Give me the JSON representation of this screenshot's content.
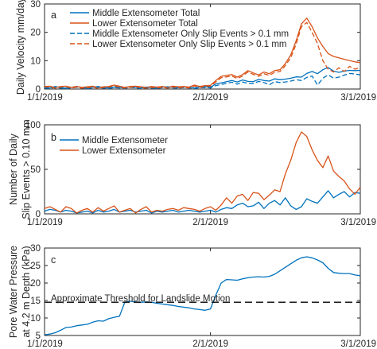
{
  "chart_data": [
    {
      "panel": "a",
      "type": "line",
      "ylabel": "Daily Velocity mm/day",
      "ylim": [
        0,
        30
      ],
      "y_ticks": [
        0,
        10,
        20,
        30
      ],
      "x_ticks": [
        "1/1/2019",
        "2/1/2019",
        "3/1/2019"
      ],
      "xlim_days": [
        0,
        59
      ],
      "grid": false,
      "legend_position": "top-center",
      "series": [
        {
          "name": "Middle Extensometer Total",
          "color": "#0072BD",
          "dash": "solid",
          "values": [
            0.6,
            0.4,
            0.9,
            0.5,
            0.3,
            0.6,
            0.9,
            0.5,
            0.3,
            0.6,
            0.9,
            0.5,
            0.4,
            0.7,
            0.6,
            0.4,
            0.9,
            0.6,
            0.4,
            0.7,
            0.5,
            0.3,
            0.7,
            0.8,
            0.6,
            0.5,
            0.8,
            0.6,
            0.4,
            0.7,
            0.8,
            0.6,
            1.8,
            2.2,
            2.6,
            3.0,
            2.5,
            3.2,
            2.7,
            2.6,
            3.4,
            3.0,
            2.8,
            3.6,
            3.3,
            3.5,
            3.8,
            4.3,
            4.2,
            5.5,
            6.2,
            5.4,
            6.8,
            7.6,
            6.3,
            5.9,
            6.3,
            6.6,
            6.5,
            6.6
          ]
        },
        {
          "name": "Lower Extensometer Total",
          "color": "#D95319",
          "dash": "solid",
          "values": [
            0.9,
            1.0,
            0.5,
            0.9,
            1.0,
            0.6,
            0.9,
            0.6,
            0.8,
            1.0,
            0.4,
            0.8,
            0.9,
            1.4,
            1.0,
            0.6,
            0.9,
            1.0,
            0.8,
            0.6,
            0.9,
            0.7,
            0.9,
            0.6,
            1.0,
            0.8,
            0.9,
            0.7,
            1.4,
            0.9,
            1.2,
            1.3,
            3.0,
            4.5,
            4.8,
            5.1,
            4.2,
            5.1,
            6.5,
            5.7,
            5.0,
            6.0,
            5.4,
            6.5,
            6.8,
            9.0,
            12.0,
            17.0,
            23.0,
            25.0,
            22.0,
            18.0,
            15.0,
            12.5,
            11.5,
            11.0,
            10.5,
            10.0,
            9.6,
            9.3
          ]
        },
        {
          "name": "Middle Extensometer Only Slip Events > 0.1 mm",
          "color": "#0072BD",
          "dash": "dashed",
          "values": [
            0.3,
            0.2,
            0.6,
            0.3,
            0.1,
            0.4,
            0.6,
            0.3,
            0.1,
            0.4,
            0.6,
            0.3,
            0.2,
            0.5,
            0.4,
            0.2,
            0.6,
            0.4,
            0.2,
            0.5,
            0.3,
            0.1,
            0.5,
            0.5,
            0.4,
            0.3,
            0.5,
            0.4,
            0.2,
            0.5,
            0.5,
            0.4,
            1.2,
            1.6,
            2.0,
            2.4,
            1.7,
            2.5,
            2.0,
            1.9,
            2.7,
            2.3,
            1.5,
            2.6,
            2.3,
            2.5,
            2.8,
            3.3,
            3.0,
            4.1,
            4.6,
            1.4,
            3.8,
            5.0,
            3.8,
            4.2,
            4.9,
            5.5,
            5.3,
            5.0
          ]
        },
        {
          "name": "Lower Extensometer Only Slip Events > 0.1 mm",
          "color": "#D95319",
          "dash": "dashed",
          "values": [
            0.7,
            0.8,
            0.3,
            0.7,
            0.9,
            0.3,
            0.7,
            0.3,
            0.5,
            0.7,
            0.2,
            0.6,
            0.7,
            1.1,
            0.7,
            0.3,
            0.6,
            0.8,
            0.5,
            0.3,
            0.6,
            0.4,
            0.6,
            0.3,
            0.7,
            0.5,
            0.6,
            0.4,
            1.1,
            0.6,
            0.9,
            1.0,
            2.5,
            4.0,
            4.3,
            4.6,
            3.7,
            4.6,
            6.0,
            5.2,
            4.5,
            5.4,
            4.8,
            5.9,
            6.2,
            8.3,
            11.0,
            15.8,
            22.0,
            23.5,
            20.0,
            16.0,
            10.0,
            7.0,
            6.0,
            7.5,
            6.2,
            8.0,
            7.0,
            7.6
          ]
        }
      ]
    },
    {
      "panel": "b",
      "type": "line",
      "ylabel": "Number of Daily\nSlip Events > 0.10 mm",
      "ylim": [
        0,
        100
      ],
      "y_ticks": [
        0,
        50,
        100
      ],
      "x_ticks": [
        "1/1/2019",
        "2/1/2019",
        "3/1/2019"
      ],
      "xlim_days": [
        0,
        59
      ],
      "grid": false,
      "legend_position": "top-left",
      "series": [
        {
          "name": "Middle Extensometer",
          "color": "#0072BD",
          "values": [
            3,
            5,
            4,
            2,
            4,
            3,
            1,
            2,
            3,
            1,
            4,
            2,
            3,
            5,
            2,
            3,
            4,
            2,
            3,
            4,
            1,
            3,
            2,
            3,
            4,
            2,
            3,
            4,
            3,
            2,
            3,
            4,
            2,
            5,
            7,
            6,
            10,
            12,
            8,
            9,
            13,
            6,
            12,
            15,
            10,
            18,
            9,
            5,
            8,
            17,
            14,
            12,
            19,
            26,
            18,
            22,
            25,
            19,
            24,
            23
          ]
        },
        {
          "name": "Lower Extensometer",
          "color": "#D95319",
          "values": [
            6,
            8,
            5,
            2,
            8,
            6,
            1,
            4,
            6,
            2,
            7,
            3,
            6,
            9,
            2,
            4,
            6,
            1,
            5,
            8,
            2,
            4,
            3,
            5,
            6,
            4,
            7,
            6,
            5,
            3,
            6,
            8,
            4,
            10,
            18,
            12,
            20,
            22,
            15,
            24,
            23,
            16,
            21,
            27,
            25,
            45,
            60,
            80,
            92,
            87,
            72,
            60,
            52,
            65,
            48,
            42,
            37,
            28,
            22,
            30
          ]
        }
      ]
    },
    {
      "panel": "c",
      "type": "line",
      "ylabel": "Pore Water Pressure\nat 4.2 m Depth (kPa)",
      "ylim": [
        5,
        30
      ],
      "y_ticks": [
        5,
        10,
        15,
        20,
        25,
        30
      ],
      "x_ticks": [
        "1/1/2019",
        "2/1/2019",
        "3/1/2019"
      ],
      "xlim_days": [
        0,
        59
      ],
      "grid": false,
      "annotation": "Approximate Threshold for Landslide Motion",
      "threshold": 14.5,
      "series": [
        {
          "name": "Pore Water Pressure",
          "color": "#0072BD",
          "values": [
            5.2,
            5.4,
            5.8,
            6.5,
            7.3,
            7.4,
            7.8,
            8.0,
            8.2,
            8.8,
            9.2,
            9.1,
            9.8,
            10.2,
            10.5,
            14.5,
            14.8,
            14.6,
            14.5,
            14.6,
            14.5,
            14.2,
            14.0,
            13.8,
            13.6,
            13.3,
            13.1,
            12.9,
            12.6,
            12.4,
            12.2,
            12.6,
            16.5,
            20.0,
            21.0,
            20.9,
            20.8,
            21.2,
            21.5,
            21.7,
            21.8,
            21.7,
            21.9,
            22.5,
            23.5,
            24.5,
            25.5,
            26.5,
            27.2,
            27.5,
            27.2,
            26.6,
            25.8,
            24.2,
            23.0,
            22.8,
            22.7,
            22.7,
            22.3,
            22.1
          ]
        }
      ]
    }
  ]
}
